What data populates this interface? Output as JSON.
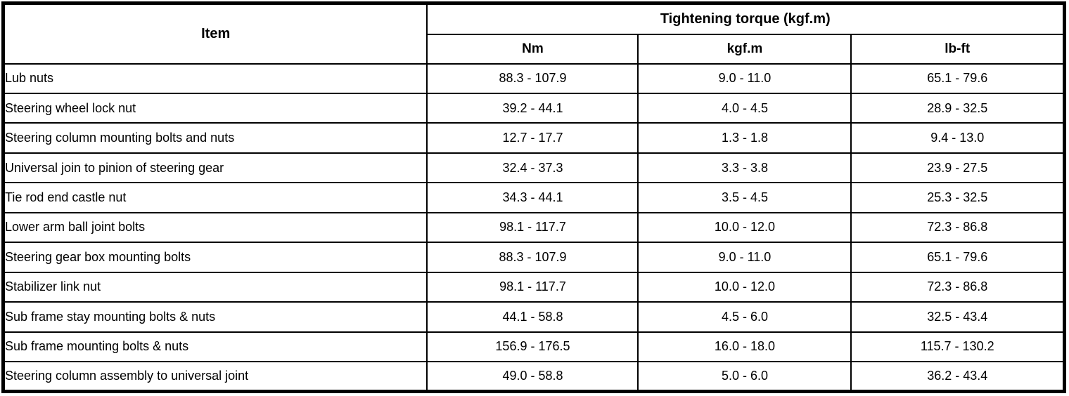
{
  "table": {
    "header": {
      "item_label": "Item",
      "torque_group_label": "Tightening torque (kgf.m)",
      "columns": [
        "Nm",
        "kgf.m",
        "lb-ft"
      ]
    },
    "rows": [
      {
        "item": "Lub nuts",
        "nm": "88.3 - 107.9",
        "kgfm": "9.0 - 11.0",
        "lbft": "65.1 - 79.6"
      },
      {
        "item": "Steering wheel lock nut",
        "nm": "39.2 - 44.1",
        "kgfm": "4.0 - 4.5",
        "lbft": "28.9 - 32.5"
      },
      {
        "item": "Steering column mounting bolts and nuts",
        "nm": "12.7 - 17.7",
        "kgfm": "1.3 - 1.8",
        "lbft": "9.4 - 13.0"
      },
      {
        "item": "Universal join to pinion of steering gear",
        "nm": "32.4 - 37.3",
        "kgfm": "3.3 - 3.8",
        "lbft": "23.9 - 27.5"
      },
      {
        "item": "Tie rod end castle nut",
        "nm": "34.3 - 44.1",
        "kgfm": "3.5 - 4.5",
        "lbft": "25.3 - 32.5"
      },
      {
        "item": "Lower arm ball joint bolts",
        "nm": "98.1 - 117.7",
        "kgfm": "10.0 - 12.0",
        "lbft": "72.3 - 86.8"
      },
      {
        "item": "Steering gear box mounting bolts",
        "nm": "88.3 - 107.9",
        "kgfm": "9.0 - 11.0",
        "lbft": "65.1 - 79.6"
      },
      {
        "item": "Stabilizer link nut",
        "nm": "98.1 - 117.7",
        "kgfm": "10.0 - 12.0",
        "lbft": "72.3 - 86.8"
      },
      {
        "item": "Sub frame stay mounting bolts & nuts",
        "nm": "44.1 - 58.8",
        "kgfm": "4.5 - 6.0",
        "lbft": "32.5 - 43.4"
      },
      {
        "item": "Sub frame mounting bolts & nuts",
        "nm": "156.9 - 176.5",
        "kgfm": "16.0 - 18.0",
        "lbft": "115.7 - 130.2"
      },
      {
        "item": "Steering column assembly to universal joint",
        "nm": "49.0 - 58.8",
        "kgfm": "5.0 - 6.0",
        "lbft": "36.2 - 43.4"
      }
    ],
    "colors": {
      "border": "#000000",
      "background": "#ffffff",
      "text": "#000000"
    }
  }
}
